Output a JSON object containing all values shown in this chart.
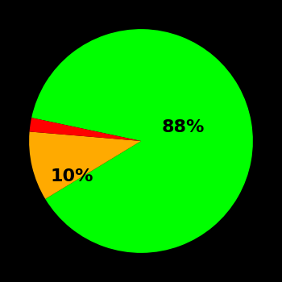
{
  "slices": [
    88,
    10,
    2
  ],
  "colors": [
    "#00ff00",
    "#ffaa00",
    "#ff0000"
  ],
  "labels": [
    "88%",
    "10%",
    ""
  ],
  "background_color": "#000000",
  "label_fontsize": 16,
  "label_color": "#000000",
  "startangle": 168
}
